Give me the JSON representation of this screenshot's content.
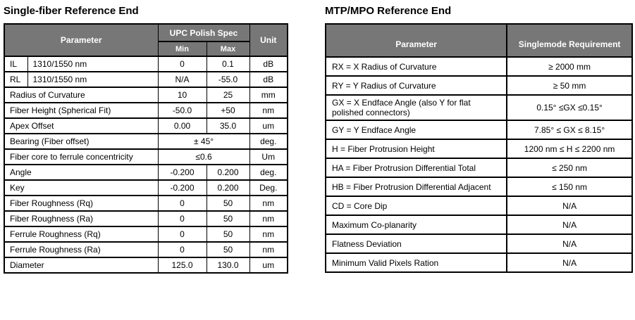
{
  "colors": {
    "header_bg": "#777777",
    "header_text": "#ffffff",
    "border": "#000000",
    "body_text": "#000000",
    "page_bg": "#ffffff"
  },
  "left_panel": {
    "title": "Single-fiber Reference End",
    "header": {
      "parameter": "Parameter",
      "spec_group": "UPC Polish Spec",
      "min": "Min",
      "max": "Max",
      "unit": "Unit"
    },
    "rows": [
      {
        "param_prefix": "IL",
        "param": "1310/1550 nm",
        "min": "0",
        "max": "0.1",
        "unit": "dB"
      },
      {
        "param_prefix": "RL",
        "param": "1310/1550 nm",
        "min": "N/A",
        "max": "-55.0",
        "unit": "dB"
      },
      {
        "param": "Radius of Curvature",
        "min": "10",
        "max": "25",
        "unit": "mm"
      },
      {
        "param": "Fiber Height (Spherical Fit)",
        "min": "-50.0",
        "max": "+50",
        "unit": "nm"
      },
      {
        "param": "Apex Offset",
        "min": "0.00",
        "max": "35.0",
        "unit": "um"
      },
      {
        "param": "Bearing (Fiber offset)",
        "merged": "± 45°",
        "unit": "deg."
      },
      {
        "param": "Fiber core to ferrule concentricity",
        "merged": "≤0.6",
        "unit": "Um"
      },
      {
        "param": "Angle",
        "min": "-0.200",
        "max": "0.200",
        "unit": "deg."
      },
      {
        "param": "Key",
        "min": "-0.200",
        "max": "0.200",
        "unit": "Deg."
      },
      {
        "param": "Fiber Roughness (Rq)",
        "min": "0",
        "max": "50",
        "unit": "nm"
      },
      {
        "param": "Fiber Roughness (Ra)",
        "min": "0",
        "max": "50",
        "unit": "nm"
      },
      {
        "param": "Ferrule Roughness (Rq)",
        "min": "0",
        "max": "50",
        "unit": "nm"
      },
      {
        "param": "Ferrule Roughness (Ra)",
        "min": "0",
        "max": "50",
        "unit": "nm"
      },
      {
        "param": "Diameter",
        "min": "125.0",
        "max": "130.0",
        "unit": "um"
      }
    ]
  },
  "right_panel": {
    "title": "MTP/MPO Reference End",
    "header": {
      "parameter": "Parameter",
      "requirement": "Singlemode Requirement"
    },
    "rows": [
      {
        "param": "RX = X Radius of Curvature",
        "requirement": "≥ 2000 mm"
      },
      {
        "param": "RY = Y Radius of Curvature",
        "requirement": "≥ 50 mm"
      },
      {
        "param": "GX = X Endface Angle (also Y for flat polished connectors)",
        "requirement": "0.15° ≤GX ≤0.15°"
      },
      {
        "param": "GY = Y Endface Angle",
        "requirement": "7.85° ≤ GX ≤ 8.15°"
      },
      {
        "param": "H = Fiber Protrusion Height",
        "requirement": "1200 nm ≤ H ≤ 2200 nm"
      },
      {
        "param": "HA = Fiber Protrusion Differential Total",
        "requirement": "≤ 250 nm"
      },
      {
        "param": "HB = Fiber Protrusion Differential Adjacent",
        "requirement": "≤ 150 nm"
      },
      {
        "param": "CD = Core Dip",
        "requirement": "N/A"
      },
      {
        "param": "Maximum Co-planarity",
        "requirement": "N/A"
      },
      {
        "param": "Flatness Deviation",
        "requirement": "N/A"
      },
      {
        "param": "Minimum Valid Pixels Ration",
        "requirement": "N/A"
      }
    ]
  }
}
